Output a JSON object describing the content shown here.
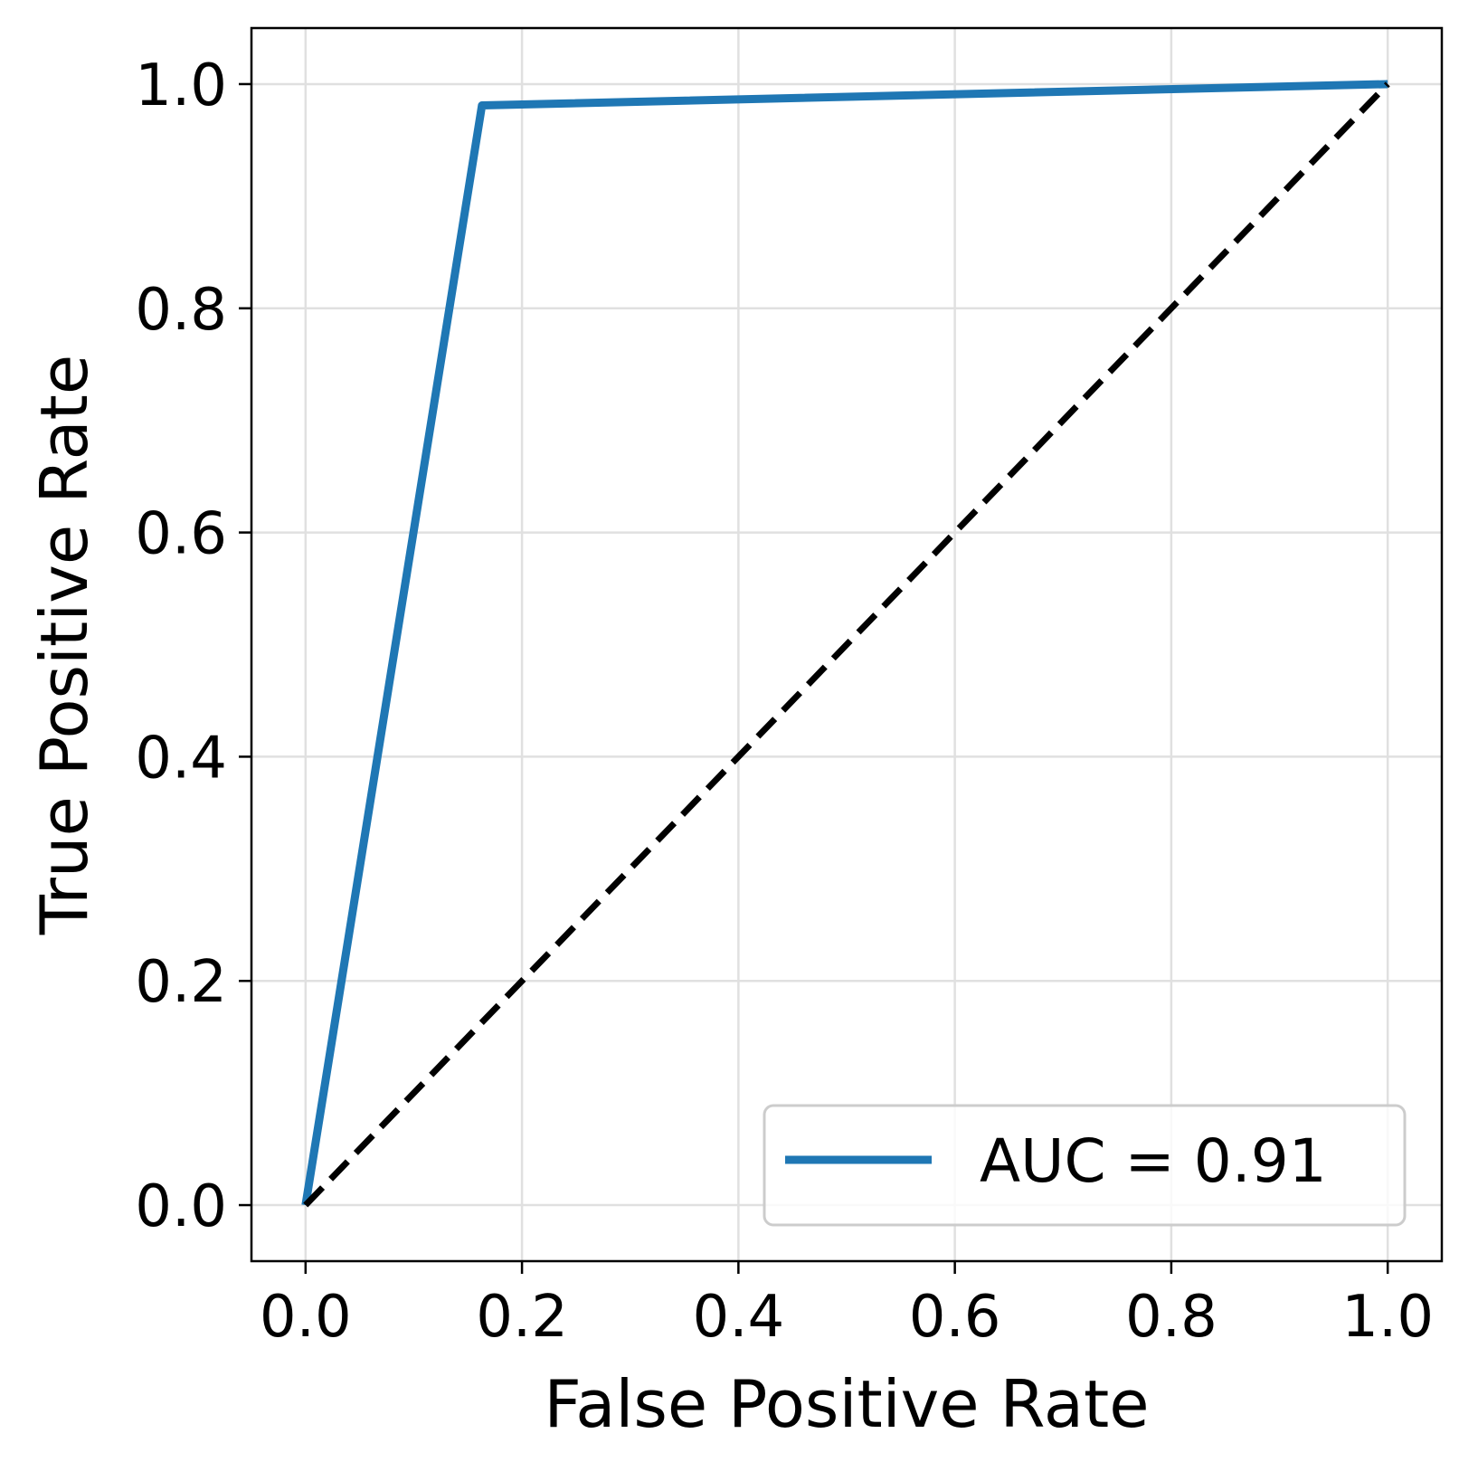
{
  "chart_data": {
    "type": "line",
    "xlabel": "False Positive Rate",
    "ylabel": "True Positive Rate",
    "xlim": [
      -0.05,
      1.05
    ],
    "ylim": [
      -0.05,
      1.05
    ],
    "x_ticks": [
      "0.0",
      "0.2",
      "0.4",
      "0.6",
      "0.8",
      "1.0"
    ],
    "y_ticks": [
      "0.0",
      "0.2",
      "0.4",
      "0.6",
      "0.8",
      "1.0"
    ],
    "grid": true,
    "legend_position": "lower-right",
    "series": [
      {
        "name": "AUC = 0.91",
        "color": "#1f77b4",
        "style": "solid",
        "x": [
          0.0,
          0.163,
          1.0
        ],
        "y": [
          0.0,
          0.981,
          1.0
        ]
      },
      {
        "color": "#000000",
        "style": "dashed",
        "x": [
          0.0,
          1.0
        ],
        "y": [
          0.0,
          1.0
        ]
      }
    ]
  }
}
